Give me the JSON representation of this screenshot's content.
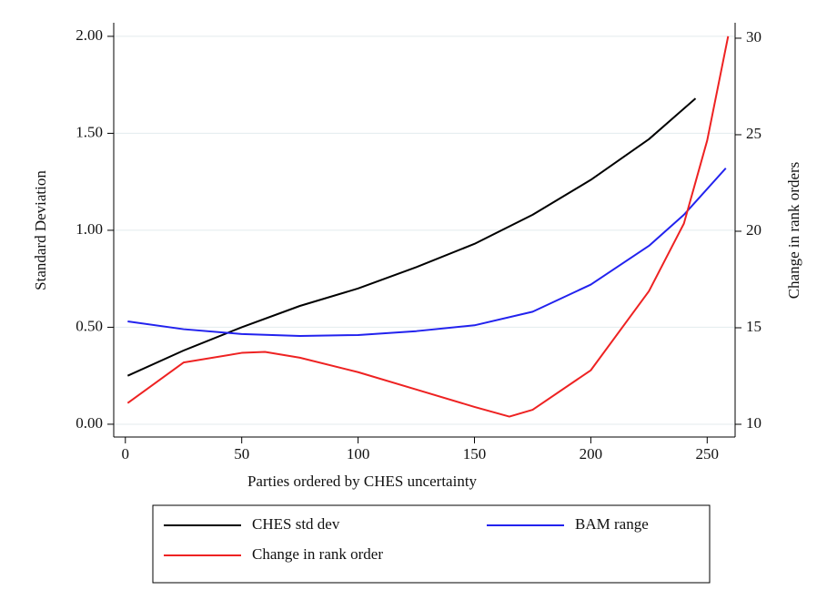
{
  "chart_data": {
    "type": "line",
    "xlabel": "Parties ordered by CHES uncertainty",
    "ylabel": "Standard Deviation",
    "y2label": "Change in rank orders",
    "xlim": [
      -5,
      262
    ],
    "xticks": [
      0,
      50,
      100,
      150,
      200,
      250
    ],
    "ylim": [
      -0.066,
      2.07
    ],
    "yticks": [
      {
        "value": 0,
        "label": "0.00"
      },
      {
        "value": 0.5,
        "label": "0.50"
      },
      {
        "value": 1,
        "label": "1.00"
      },
      {
        "value": 1.5,
        "label": "1.50"
      },
      {
        "value": 2,
        "label": "2.00"
      }
    ],
    "y2lim": [
      9.34,
      30.8
    ],
    "y2ticks": [
      10,
      15,
      20,
      25,
      30
    ],
    "grid": true,
    "legend": "bottom",
    "series": [
      {
        "name": "CHES std dev",
        "color": "#000000",
        "axis": "y",
        "x": [
          1,
          25,
          50,
          75,
          100,
          125,
          150,
          175,
          200,
          225,
          245
        ],
        "values": [
          0.25,
          0.38,
          0.5,
          0.61,
          0.7,
          0.81,
          0.93,
          1.08,
          1.26,
          1.47,
          1.68
        ]
      },
      {
        "name": "BAM range",
        "color": "#2222ee",
        "axis": "y",
        "x": [
          1,
          25,
          50,
          75,
          100,
          125,
          150,
          175,
          200,
          225,
          240,
          258
        ],
        "values": [
          0.53,
          0.49,
          0.465,
          0.455,
          0.46,
          0.48,
          0.51,
          0.58,
          0.72,
          0.92,
          1.08,
          1.32
        ]
      },
      {
        "name": "Change in rank order",
        "color": "#ee2222",
        "axis": "y2",
        "x": [
          1,
          25,
          50,
          60,
          75,
          100,
          125,
          150,
          165,
          175,
          200,
          225,
          240,
          250,
          259
        ],
        "values": [
          11.1,
          13.2,
          13.7,
          13.75,
          13.45,
          12.7,
          11.8,
          10.9,
          10.4,
          10.75,
          12.8,
          16.9,
          20.4,
          24.7,
          30.1
        ]
      }
    ]
  }
}
